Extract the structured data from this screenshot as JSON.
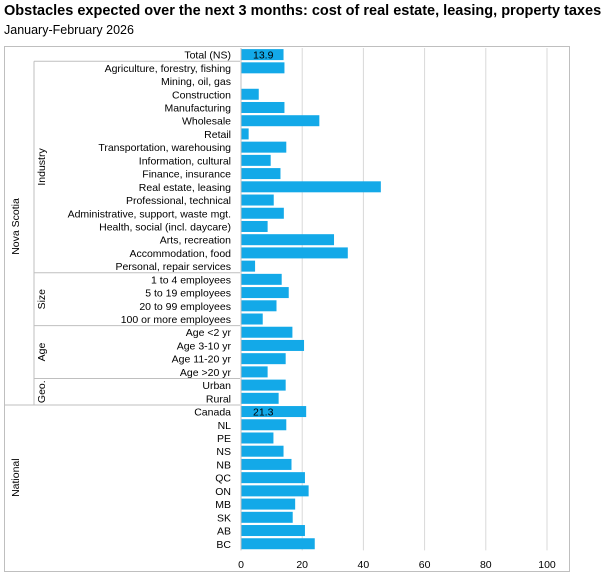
{
  "chart_data": {
    "type": "bar",
    "orientation": "horizontal",
    "title": "Obstacles expected over the next 3 months: cost of real estate, leasing, property taxes",
    "subtitle": "January-February  2026",
    "xlim": [
      0,
      100
    ],
    "xticks": [
      0,
      20,
      40,
      60,
      80,
      100
    ],
    "grid": true,
    "bar_color": "#13a9e8",
    "groups": [
      {
        "label": "Nova Scotia",
        "start": 0,
        "end": 27
      },
      {
        "label": "National",
        "start": 27,
        "end": 38
      }
    ],
    "subgroups": [
      {
        "label": "",
        "start": 0,
        "end": 1
      },
      {
        "label": "Industry",
        "start": 1,
        "end": 17
      },
      {
        "label": "Size",
        "start": 17,
        "end": 21
      },
      {
        "label": "Age",
        "start": 21,
        "end": 25
      },
      {
        "label": "Geo.",
        "start": 25,
        "end": 27
      },
      {
        "label": "",
        "start": 27,
        "end": 38
      }
    ],
    "categories": [
      "Total (NS)",
      "Agriculture, forestry, fishing",
      "Mining, oil, gas",
      "Construction",
      "Manufacturing",
      "Wholesale",
      "Retail",
      "Transportation, warehousing",
      "Information, cultural",
      "Finance, insurance",
      "Real estate, leasing",
      "Professional, technical",
      "Administrative, support, waste mgt.",
      "Health, social (incl. daycare)",
      "Arts, recreation",
      "Accommodation, food",
      "Personal, repair services",
      "1 to 4 employees",
      "5 to 19 employees",
      "20 to 99 employees",
      "100 or more employees",
      "Age <2 yr",
      "Age 3-10 yr",
      "Age 11-20 yr",
      "Age >20 yr",
      "Urban",
      "Rural",
      "Canada",
      "NL",
      "PE",
      "NS",
      "NB",
      "QC",
      "ON",
      "MB",
      "SK",
      "AB",
      "BC"
    ],
    "values": [
      13.9,
      14.2,
      null,
      5.8,
      14.2,
      25.6,
      2.5,
      14.8,
      9.7,
      12.9,
      45.7,
      10.7,
      14.0,
      8.7,
      30.4,
      34.9,
      4.6,
      13.3,
      15.6,
      11.6,
      7.1,
      16.8,
      20.6,
      14.6,
      8.7,
      14.6,
      12.3,
      21.3,
      14.8,
      10.6,
      13.9,
      16.5,
      20.9,
      22.1,
      17.7,
      16.9,
      20.9,
      24.1
    ],
    "data_labels": [
      {
        "index": 0,
        "text": "13.9"
      },
      {
        "index": 27,
        "text": "21.3"
      }
    ]
  }
}
